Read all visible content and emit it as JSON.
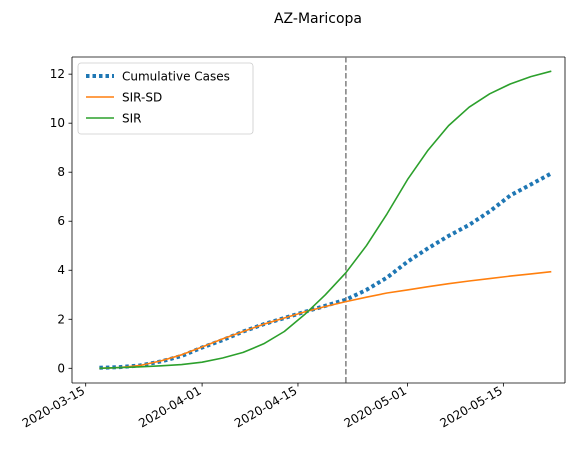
{
  "chart_data": {
    "type": "line",
    "title": "AZ-Maricopa",
    "xlabel": "",
    "ylabel": "",
    "x_ticks": [
      "2020-03-15",
      "2020-04-01",
      "2020-04-15",
      "2020-05-01",
      "2020-05-15"
    ],
    "y_ticks": [
      0,
      2,
      4,
      6,
      8,
      10,
      12
    ],
    "xlim": [
      "2020-03-13",
      "2020-05-24"
    ],
    "ylim": [
      -0.6,
      12.7
    ],
    "grid": false,
    "legend_position": "top-left",
    "vline": {
      "x": "2020-04-22",
      "color": "#7f7f7f",
      "style": "dashed"
    },
    "series": [
      {
        "name": "Cumulative Cases",
        "color": "#1f77b4",
        "style": "dotted",
        "points": [
          [
            "2020-03-17",
            0.02
          ],
          [
            "2020-03-20",
            0.05
          ],
          [
            "2020-03-23",
            0.12
          ],
          [
            "2020-03-26",
            0.28
          ],
          [
            "2020-03-29",
            0.5
          ],
          [
            "2020-04-01",
            0.85
          ],
          [
            "2020-04-04",
            1.15
          ],
          [
            "2020-04-07",
            1.5
          ],
          [
            "2020-04-10",
            1.8
          ],
          [
            "2020-04-13",
            2.05
          ],
          [
            "2020-04-16",
            2.3
          ],
          [
            "2020-04-19",
            2.55
          ],
          [
            "2020-04-22",
            2.8
          ],
          [
            "2020-04-25",
            3.2
          ],
          [
            "2020-04-28",
            3.7
          ],
          [
            "2020-05-01",
            4.35
          ],
          [
            "2020-05-04",
            4.9
          ],
          [
            "2020-05-07",
            5.4
          ],
          [
            "2020-05-10",
            5.85
          ],
          [
            "2020-05-13",
            6.4
          ],
          [
            "2020-05-16",
            7.05
          ],
          [
            "2020-05-19",
            7.5
          ],
          [
            "2020-05-22",
            7.95
          ]
        ]
      },
      {
        "name": "SIR-SD",
        "color": "#ff7f0e",
        "style": "solid",
        "points": [
          [
            "2020-03-17",
            0.0
          ],
          [
            "2020-03-20",
            0.03
          ],
          [
            "2020-03-23",
            0.12
          ],
          [
            "2020-03-26",
            0.3
          ],
          [
            "2020-03-29",
            0.55
          ],
          [
            "2020-04-01",
            0.87
          ],
          [
            "2020-04-04",
            1.2
          ],
          [
            "2020-04-07",
            1.5
          ],
          [
            "2020-04-10",
            1.8
          ],
          [
            "2020-04-13",
            2.05
          ],
          [
            "2020-04-16",
            2.3
          ],
          [
            "2020-04-19",
            2.52
          ],
          [
            "2020-04-22",
            2.72
          ],
          [
            "2020-04-25",
            2.9
          ],
          [
            "2020-04-28",
            3.07
          ],
          [
            "2020-05-01",
            3.2
          ],
          [
            "2020-05-04",
            3.33
          ],
          [
            "2020-05-07",
            3.45
          ],
          [
            "2020-05-10",
            3.56
          ],
          [
            "2020-05-13",
            3.66
          ],
          [
            "2020-05-16",
            3.76
          ],
          [
            "2020-05-19",
            3.85
          ],
          [
            "2020-05-22",
            3.94
          ]
        ]
      },
      {
        "name": "SIR",
        "color": "#2ca02c",
        "style": "solid",
        "points": [
          [
            "2020-03-17",
            0.0
          ],
          [
            "2020-03-20",
            0.03
          ],
          [
            "2020-03-23",
            0.06
          ],
          [
            "2020-03-26",
            0.1
          ],
          [
            "2020-03-29",
            0.15
          ],
          [
            "2020-04-01",
            0.25
          ],
          [
            "2020-04-04",
            0.42
          ],
          [
            "2020-04-07",
            0.65
          ],
          [
            "2020-04-10",
            1.0
          ],
          [
            "2020-04-13",
            1.5
          ],
          [
            "2020-04-16",
            2.2
          ],
          [
            "2020-04-19",
            3.0
          ],
          [
            "2020-04-22",
            3.9
          ],
          [
            "2020-04-25",
            5.0
          ],
          [
            "2020-04-28",
            6.3
          ],
          [
            "2020-05-01",
            7.7
          ],
          [
            "2020-05-04",
            8.9
          ],
          [
            "2020-05-07",
            9.9
          ],
          [
            "2020-05-10",
            10.65
          ],
          [
            "2020-05-13",
            11.2
          ],
          [
            "2020-05-16",
            11.6
          ],
          [
            "2020-05-19",
            11.9
          ],
          [
            "2020-05-22",
            12.12
          ]
        ]
      }
    ]
  }
}
